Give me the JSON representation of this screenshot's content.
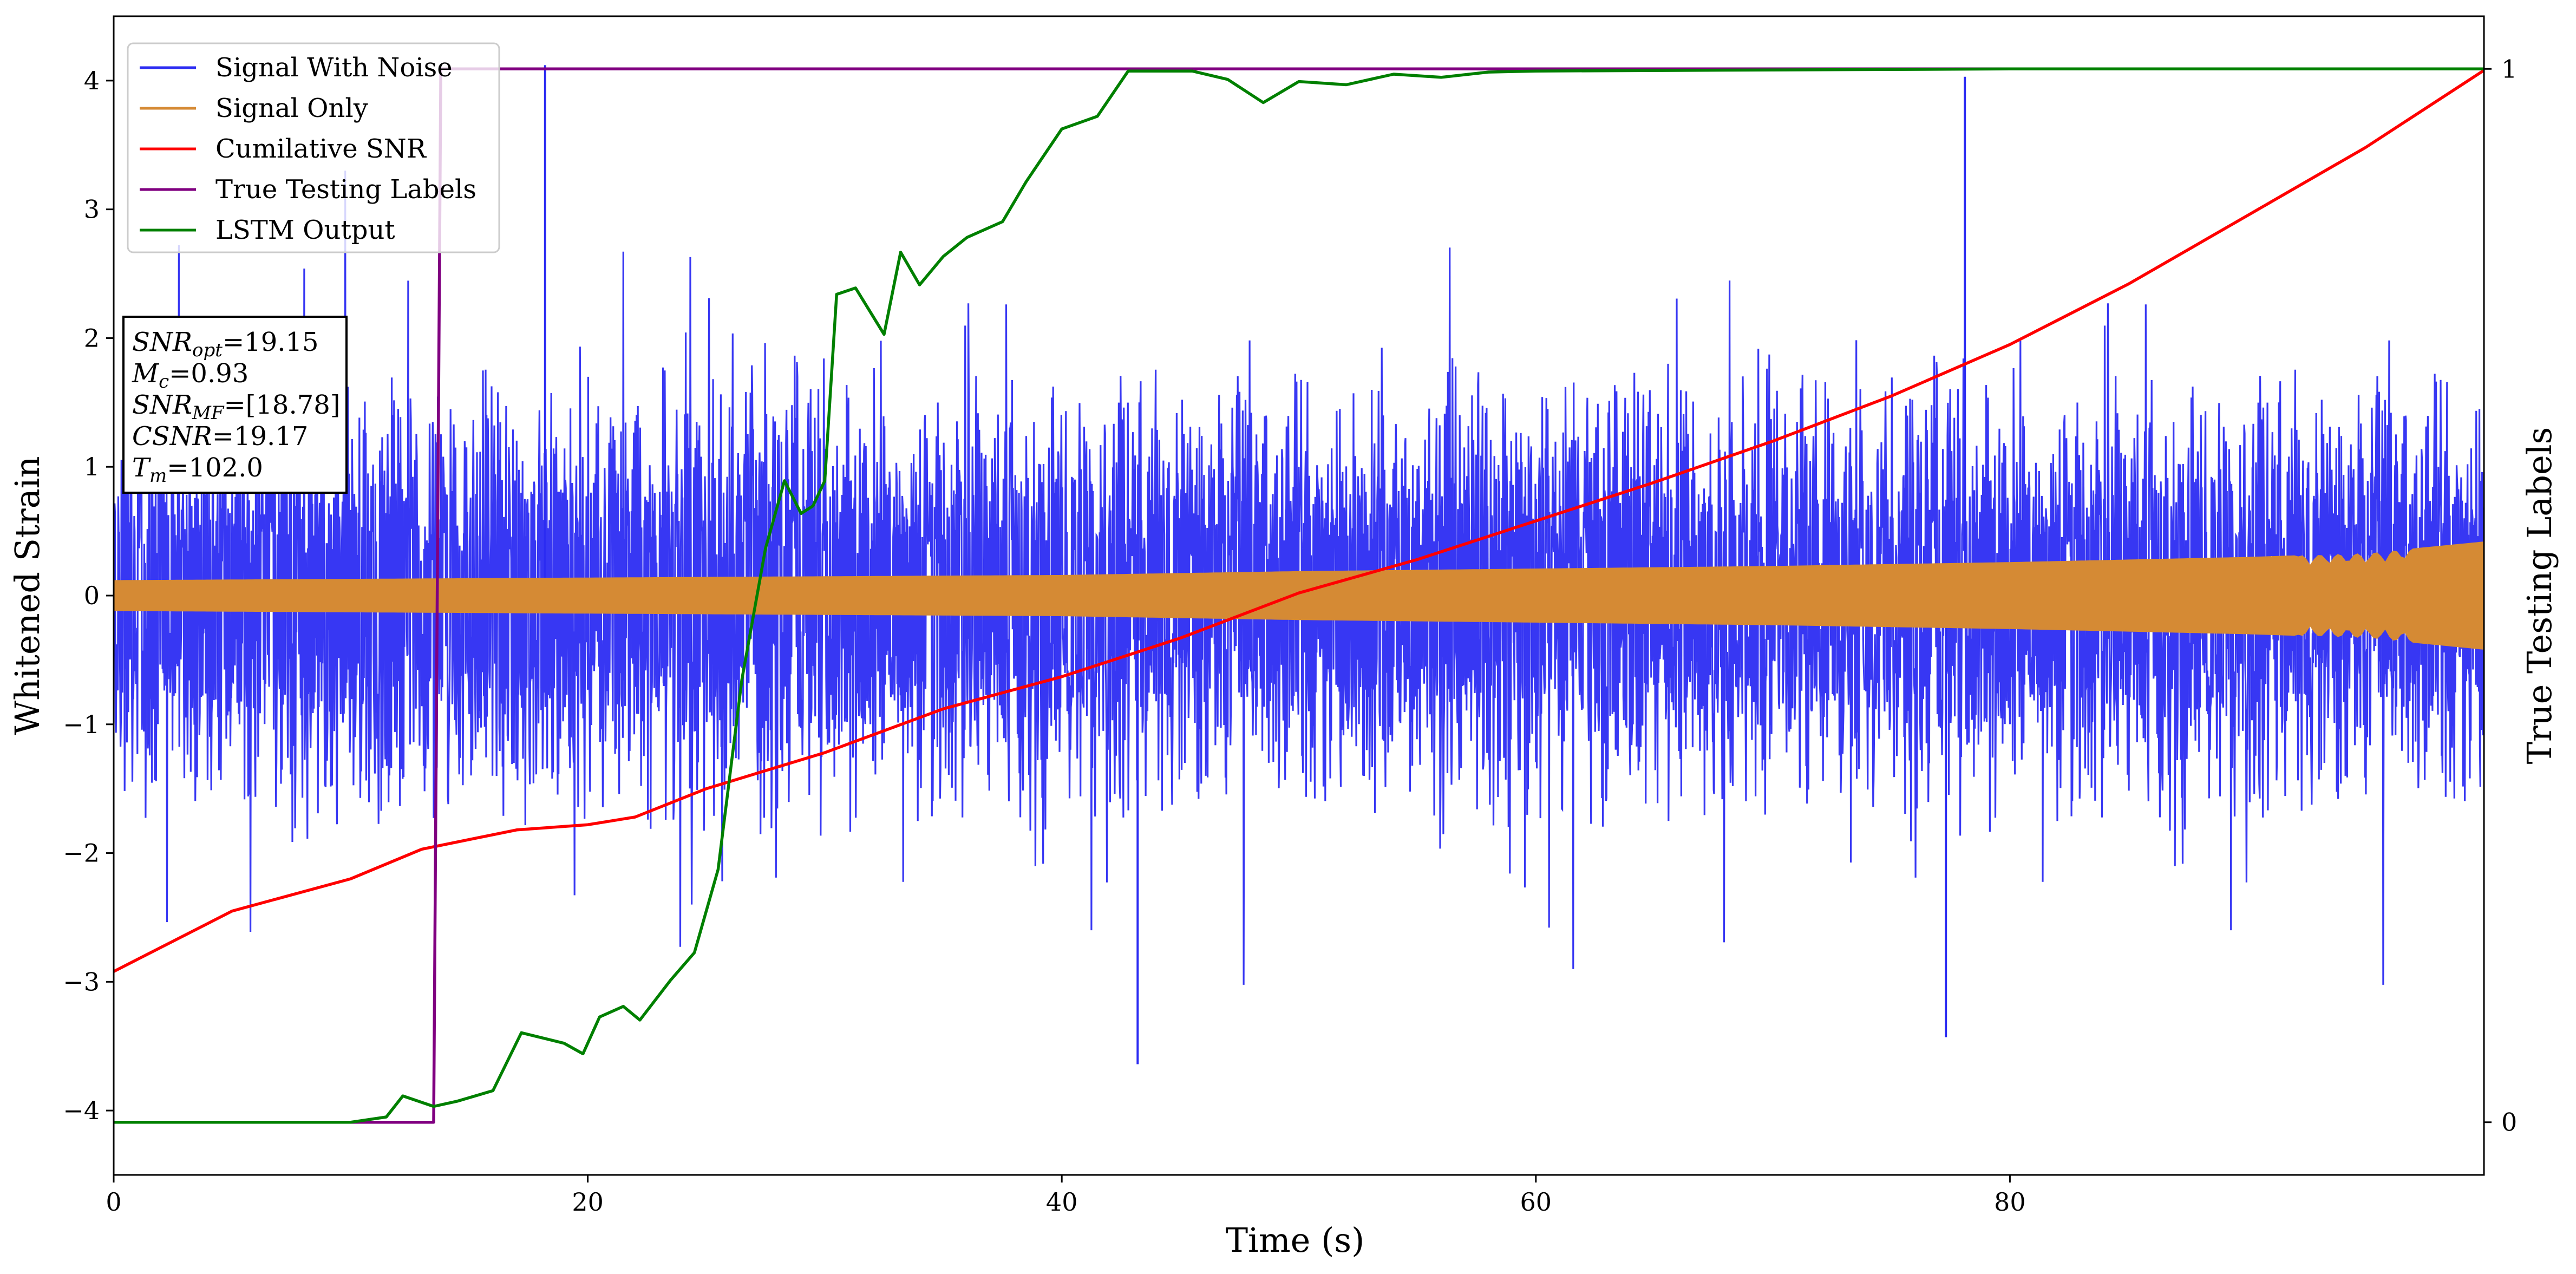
{
  "chart_data": {
    "type": "line",
    "xlabel": "Time (s)",
    "ylabel": "Whitened Strain",
    "y2label": "True Testing Labels",
    "xlim": [
      0,
      100
    ],
    "ylim": [
      -4.5,
      4.5
    ],
    "y2lim": [
      -0.05,
      1.05
    ],
    "xticks": [
      "0",
      "20",
      "40",
      "60",
      "80"
    ],
    "yticks": [
      "−4",
      "−3",
      "−2",
      "−1",
      "0",
      "1",
      "2",
      "3",
      "4"
    ],
    "y2ticks": [
      "0",
      "1"
    ],
    "legend_position": "upper-left",
    "grid": false,
    "series": [
      {
        "name": "Signal With Noise",
        "color": "#2c2cf2",
        "axis": "left",
        "description_samples": "dense noise around 0, amplitude ~±2.5 with spikes to 4.1 and -3.6",
        "envelope_peaks": [
          [
            18.2,
            4.12
          ],
          [
            78.1,
            4.03
          ],
          [
            43.2,
            -3.64
          ],
          [
            77.3,
            -3.43
          ]
        ]
      },
      {
        "name": "Signal Only",
        "color": "#d58a34",
        "axis": "left",
        "envelope": [
          [
            0,
            0.12
          ],
          [
            10,
            0.13
          ],
          [
            20,
            0.14
          ],
          [
            30,
            0.15
          ],
          [
            40,
            0.16
          ],
          [
            50,
            0.19
          ],
          [
            60,
            0.21
          ],
          [
            70,
            0.23
          ],
          [
            80,
            0.26
          ],
          [
            90,
            0.3
          ],
          [
            95,
            0.33
          ],
          [
            100,
            0.42
          ]
        ]
      },
      {
        "name": "Cumilative SNR",
        "color": "#ff0000",
        "axis": "left",
        "points": [
          [
            0,
            -2.92
          ],
          [
            5,
            -2.45
          ],
          [
            10,
            -2.2
          ],
          [
            13,
            -1.97
          ],
          [
            17,
            -1.82
          ],
          [
            20,
            -1.78
          ],
          [
            22,
            -1.72
          ],
          [
            25,
            -1.5
          ],
          [
            30,
            -1.22
          ],
          [
            35,
            -0.88
          ],
          [
            40,
            -0.63
          ],
          [
            45,
            -0.33
          ],
          [
            50,
            0.02
          ],
          [
            55,
            0.28
          ],
          [
            60,
            0.58
          ],
          [
            65,
            0.88
          ],
          [
            70,
            1.2
          ],
          [
            75,
            1.55
          ],
          [
            80,
            1.95
          ],
          [
            85,
            2.42
          ],
          [
            90,
            2.95
          ],
          [
            95,
            3.48
          ],
          [
            100,
            4.08
          ]
        ]
      },
      {
        "name": "True Testing Labels",
        "color": "#800080",
        "axis": "right",
        "points": [
          [
            0,
            0
          ],
          [
            13.5,
            0
          ],
          [
            13.8,
            1
          ],
          [
            100,
            1
          ]
        ]
      },
      {
        "name": "LSTM Output",
        "color": "#008000",
        "axis": "right",
        "points": [
          [
            0,
            0
          ],
          [
            10,
            0
          ],
          [
            11.5,
            0.005
          ],
          [
            12.2,
            0.025
          ],
          [
            13.5,
            0.015
          ],
          [
            14.5,
            0.02
          ],
          [
            16,
            0.03
          ],
          [
            17.2,
            0.085
          ],
          [
            19,
            0.075
          ],
          [
            19.8,
            0.065
          ],
          [
            20.5,
            0.1
          ],
          [
            21.5,
            0.11
          ],
          [
            22.2,
            0.097
          ],
          [
            23.5,
            0.135
          ],
          [
            24.5,
            0.161
          ],
          [
            25.5,
            0.24
          ],
          [
            26.5,
            0.42
          ],
          [
            27.5,
            0.545
          ],
          [
            28.3,
            0.609
          ],
          [
            29,
            0.578
          ],
          [
            29.5,
            0.585
          ],
          [
            30,
            0.609
          ],
          [
            30.5,
            0.786
          ],
          [
            31.3,
            0.792
          ],
          [
            32.5,
            0.748
          ],
          [
            33.2,
            0.826
          ],
          [
            34,
            0.795
          ],
          [
            35,
            0.822
          ],
          [
            36,
            0.84
          ],
          [
            37.5,
            0.855
          ],
          [
            38.5,
            0.893
          ],
          [
            40,
            0.943
          ],
          [
            41.5,
            0.955
          ],
          [
            42.8,
            0.998
          ],
          [
            44,
            0.998
          ],
          [
            45.5,
            0.998
          ],
          [
            47,
            0.99
          ],
          [
            48.5,
            0.968
          ],
          [
            50,
            0.988
          ],
          [
            52,
            0.985
          ],
          [
            54,
            0.995
          ],
          [
            56,
            0.992
          ],
          [
            58,
            0.997
          ],
          [
            60,
            0.998
          ],
          [
            70,
            0.999
          ],
          [
            80,
            1.0
          ],
          [
            100,
            1.0
          ]
        ]
      }
    ],
    "annotation_box": {
      "lines": [
        {
          "sym": "SNR",
          "sub": "opt",
          "value": "=19.15"
        },
        {
          "sym": "M",
          "sub": "c",
          "value": "=0.93"
        },
        {
          "sym": "SNR",
          "sub": "MF",
          "value": "=[18.78]"
        },
        {
          "sym": "CSNR",
          "sub": "",
          "value": "=19.17"
        },
        {
          "sym": "T",
          "sub": "m",
          "value": "=102.0"
        }
      ]
    }
  }
}
